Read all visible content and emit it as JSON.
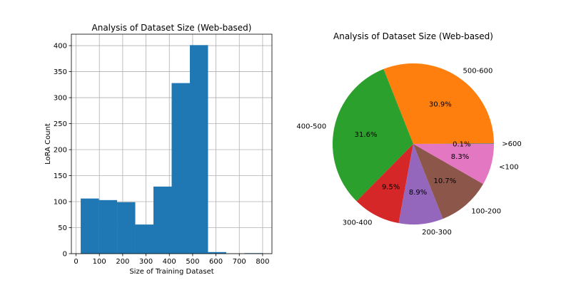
{
  "chart_data": [
    {
      "type": "bar",
      "title": "Analysis of Dataset Size (Web-based)",
      "xlabel": "Size of Training Dataset",
      "ylabel": "LoRA Count",
      "xlim": [
        -20,
        840
      ],
      "ylim": [
        0,
        422
      ],
      "xticks": [
        0,
        100,
        200,
        300,
        400,
        500,
        600,
        700,
        800
      ],
      "yticks": [
        0,
        50,
        100,
        150,
        200,
        250,
        300,
        350,
        400
      ],
      "grid": true,
      "bin_edges": [
        20,
        98,
        176,
        254,
        332,
        410,
        488,
        566,
        644,
        722,
        800
      ],
      "values": [
        106,
        103,
        99,
        56,
        129,
        328,
        401,
        3,
        0,
        1
      ],
      "color": "#1f77b4"
    },
    {
      "type": "pie",
      "title": "Analysis of Dataset Size (Web-based)",
      "labels": [
        ">600",
        "500-600",
        "400-500",
        "300-400",
        "200-300",
        "100-200",
        "<100"
      ],
      "percentages": [
        "0.1%",
        "30.9%",
        "31.6%",
        "9.5%",
        "8.9%",
        "10.7%",
        "8.3%"
      ],
      "values": [
        0.1,
        30.9,
        31.6,
        9.5,
        8.9,
        10.7,
        8.3
      ],
      "colors": [
        "#1f77b4",
        "#ff7f0e",
        "#2ca02c",
        "#d62728",
        "#9467bd",
        "#8c564b",
        "#e377c2"
      ]
    }
  ]
}
